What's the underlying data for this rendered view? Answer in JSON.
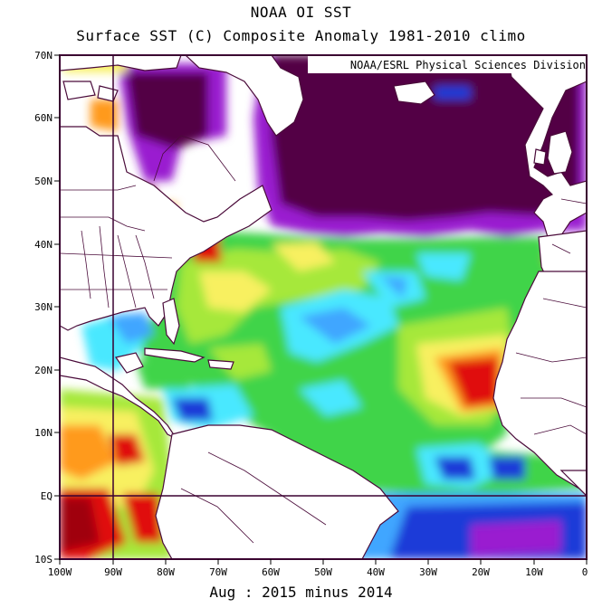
{
  "title_line1": "NOAA OI SST",
  "title_line2": "Surface SST (C) Composite Anomaly 1981-2010 climo",
  "credit": "NOAA/ESRL Physical Sciences Division",
  "footer": "Aug : 2015 minus 2014",
  "lat_labels": [
    "70N",
    "60N",
    "50N",
    "40N",
    "30N",
    "20N",
    "10N",
    "EQ",
    "10S"
  ],
  "lon_labels": [
    "100W",
    "90W",
    "80W",
    "70W",
    "60W",
    "50W",
    "40W",
    "30W",
    "20W",
    "10W",
    "0"
  ],
  "colors": {
    "land": "#ffffff",
    "coast": "#4a0b3a",
    "frame": "#3a0030",
    "very_cold": "#520045",
    "cold_purple": "#9a1bd0",
    "blue": "#1a3bd8",
    "light_blue": "#3fa6ff",
    "cyan": "#4ae8ff",
    "green": "#3fd44a",
    "light_green": "#a6e83a",
    "yellow": "#f8f060",
    "orange": "#ff9a1a",
    "red": "#e01010",
    "dark_red": "#a00010"
  }
}
